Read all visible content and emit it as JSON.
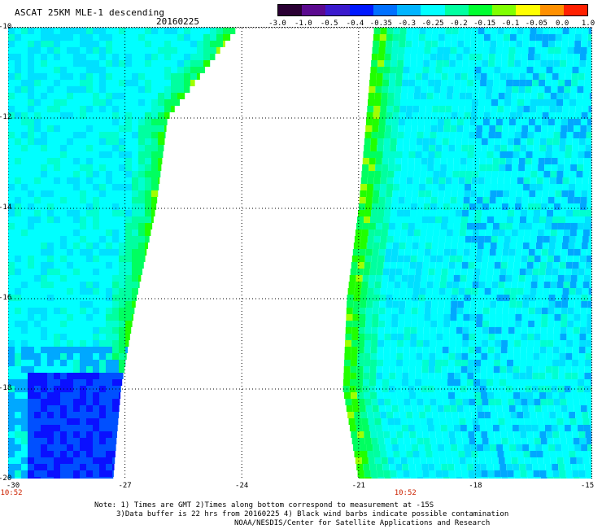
{
  "header": {
    "title": "ASCAT 25KM MLE-1 descending",
    "date": "20160225"
  },
  "colorbar": {
    "labels": [
      "-3.0",
      "-1.0",
      "-0.5",
      "-0.4",
      "-0.35",
      "-0.3",
      "-0.25",
      "-0.2",
      "-0.15",
      "-0.1",
      "-0.05",
      "0.0",
      "1.0"
    ],
    "colors": [
      "#2a0033",
      "#5b0a8f",
      "#3b1acd",
      "#0018ff",
      "#0070ff",
      "#00b4ff",
      "#00ffff",
      "#00ffa0",
      "#00ff30",
      "#80ff00",
      "#ffff00",
      "#ff9000",
      "#ff2000"
    ]
  },
  "map": {
    "lat_labels": [
      "-10",
      "-12",
      "-14",
      "-16",
      "-18",
      "-20"
    ],
    "lon_labels": [
      "-30",
      "-27",
      "-24",
      "-21",
      "-18",
      "-15"
    ],
    "lat_range": [
      -10,
      -20
    ],
    "lon_range": [
      -30,
      -15
    ],
    "time_labels": [
      {
        "lon": -30,
        "text": "10:52"
      },
      {
        "lon": -19.8,
        "text": "10:52"
      }
    ],
    "swaths": [
      {
        "name": "west",
        "lon_west": -30,
        "east_edge": [
          [
            -10,
            -24.1
          ],
          [
            -12,
            -25.9
          ],
          [
            -14,
            -26.2
          ],
          [
            -16,
            -26.7
          ],
          [
            -18,
            -27.1
          ],
          [
            -20,
            -27.3
          ]
        ]
      },
      {
        "name": "east",
        "west_edge": [
          [
            -10,
            -20.6
          ],
          [
            -12,
            -20.8
          ],
          [
            -14,
            -21.0
          ],
          [
            -16,
            -21.3
          ],
          [
            -18,
            -21.4
          ],
          [
            -20,
            -21.0
          ]
        ],
        "lon_east": -15
      }
    ]
  },
  "notes": [
    "Note: 1) Times are GMT 2)Times along bottom correspond to measurement at -15S",
    "3)Data buffer is 22 hrs from 20160225 4) Black wind barbs indicate possible contamination",
    "NOAA/NESDIS/Center for Satellite Applications and Research"
  ]
}
